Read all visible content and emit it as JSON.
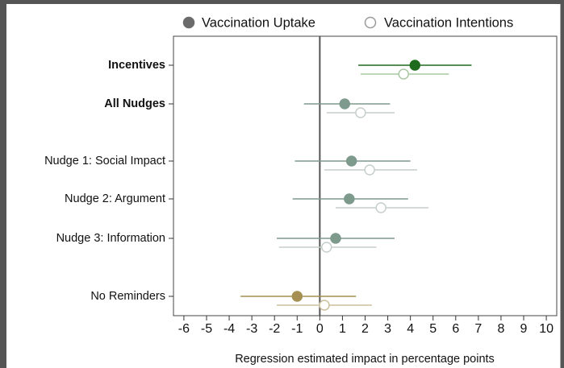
{
  "chart_data": {
    "type": "dot-ci",
    "x_label": "Regression estimated impact in percentage points",
    "categories": [
      "Incentives",
      "All Nudges",
      "Nudge 1: Social Impact",
      "Nudge 2: Argument",
      "Nudge 3: Information",
      "No Reminders"
    ],
    "series": [
      {
        "name": "Vaccination Uptake",
        "color": "#6b6b6b",
        "filled": true,
        "colors": [
          "#1e6b1e",
          "#7d9a8d",
          "#7d9a8d",
          "#7d9a8d",
          "#7d9a8d",
          "#a68f52"
        ],
        "values": [
          4.2,
          1.1,
          1.4,
          1.3,
          0.7,
          -1.0
        ],
        "ci_low": [
          1.7,
          -0.7,
          -1.1,
          -1.2,
          -1.9,
          -3.5
        ],
        "ci_high": [
          6.7,
          3.1,
          4.0,
          3.9,
          3.3,
          1.6
        ]
      },
      {
        "name": "Vaccination Intentions",
        "color": "#9a9a9a",
        "filled": false,
        "colors": [
          "#a9c9a1",
          "#c6cfca",
          "#c6cfca",
          "#c6cfca",
          "#c6cfca",
          "#cbbf9c"
        ],
        "values": [
          3.7,
          1.8,
          2.2,
          2.7,
          0.3,
          0.2
        ],
        "ci_low": [
          1.8,
          0.3,
          0.2,
          0.7,
          -1.8,
          -1.9
        ],
        "ci_high": [
          5.7,
          3.3,
          4.3,
          4.8,
          2.5,
          2.3
        ]
      }
    ],
    "xlim": [
      -6.46,
      10.46
    ],
    "xticks": [
      -6,
      -5,
      -4,
      -3,
      -2,
      -1,
      0,
      1,
      2,
      3,
      4,
      5,
      6,
      7,
      8,
      9,
      10
    ],
    "zero_line": 0
  }
}
